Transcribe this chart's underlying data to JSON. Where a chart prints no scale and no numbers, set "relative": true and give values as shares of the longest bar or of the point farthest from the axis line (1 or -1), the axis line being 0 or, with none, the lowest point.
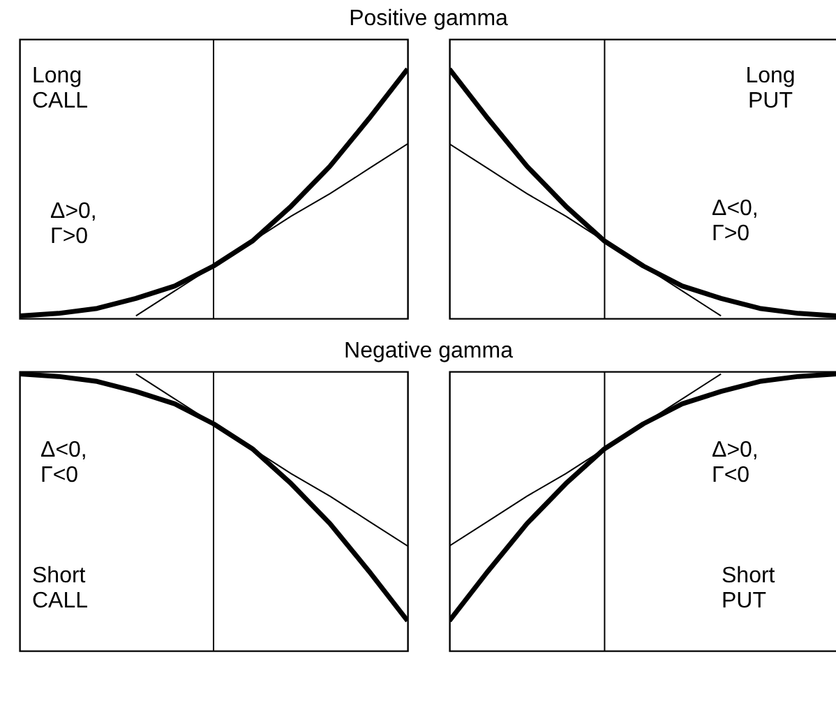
{
  "chart_data": [
    {
      "type": "line",
      "title": "Positive gamma",
      "relative": true,
      "categories": [
        null,
        null,
        null,
        null,
        null,
        null,
        null,
        null,
        null,
        null,
        null
      ],
      "tick_labels": false,
      "ref_lines": [
        {
          "axis": "x"
        }
      ],
      "annotations": [
        "Long\nCALL",
        "Δ>0,\nΓ>0"
      ],
      "series": [
        {
          "color": "#000000",
          "values": [
            0.01,
            0.02,
            0.04,
            0.08,
            0.13,
            0.21,
            0.31,
            0.45,
            0.61,
            0.8,
            1
          ]
        },
        {
          "color": "#000000",
          "values": [
            null,
            null,
            null,
            0.01,
            0.11,
            0.21,
            0.31,
            0.41,
            0.5,
            0.6,
            0.7
          ]
        }
      ]
    },
    {
      "type": "line",
      "relative": true,
      "categories": [
        null,
        null,
        null,
        null,
        null,
        null,
        null,
        null,
        null,
        null,
        null
      ],
      "tick_labels": false,
      "ref_lines": [
        {
          "axis": "x"
        }
      ],
      "annotations": [
        "Long\nPUT",
        "Δ<0,\nΓ>0"
      ],
      "series": [
        {
          "color": "#000000",
          "values": [
            1,
            0.8,
            0.61,
            0.45,
            0.31,
            0.21,
            0.13,
            0.08,
            0.04,
            0.02,
            0.01
          ]
        },
        {
          "color": "#000000",
          "values": [
            0.7,
            0.6,
            0.5,
            0.41,
            0.31,
            0.21,
            0.11,
            0.01,
            null,
            null,
            null
          ]
        }
      ]
    },
    {
      "type": "line",
      "title": "Negative gamma",
      "relative": true,
      "categories": [
        null,
        null,
        null,
        null,
        null,
        null,
        null,
        null,
        null,
        null,
        null
      ],
      "tick_labels": false,
      "ref_lines": [
        {
          "axis": "x"
        }
      ],
      "annotations": [
        "Δ<0,\nΓ<0",
        "Short\nCALL"
      ],
      "series": [
        {
          "color": "#000000",
          "values": [
            -0.01,
            -0.02,
            -0.04,
            -0.08,
            -0.13,
            -0.21,
            -0.31,
            -0.45,
            -0.61,
            -0.8,
            -1
          ]
        },
        {
          "color": "#000000",
          "values": [
            null,
            null,
            null,
            -0.01,
            -0.11,
            -0.21,
            -0.31,
            -0.41,
            -0.5,
            -0.6,
            -0.7
          ]
        }
      ]
    },
    {
      "type": "line",
      "relative": true,
      "categories": [
        null,
        null,
        null,
        null,
        null,
        null,
        null,
        null,
        null,
        null,
        null
      ],
      "tick_labels": false,
      "ref_lines": [
        {
          "axis": "x"
        }
      ],
      "annotations": [
        "Δ>0,\nΓ<0",
        "Short\nPUT"
      ],
      "series": [
        {
          "color": "#000000",
          "values": [
            -1,
            -0.8,
            -0.61,
            -0.45,
            -0.31,
            -0.21,
            -0.13,
            -0.08,
            -0.04,
            -0.02,
            -0.01
          ]
        },
        {
          "color": "#000000",
          "values": [
            -0.7,
            -0.6,
            -0.5,
            -0.41,
            -0.31,
            -0.21,
            -0.11,
            -0.01,
            null,
            null,
            null
          ]
        }
      ]
    }
  ]
}
